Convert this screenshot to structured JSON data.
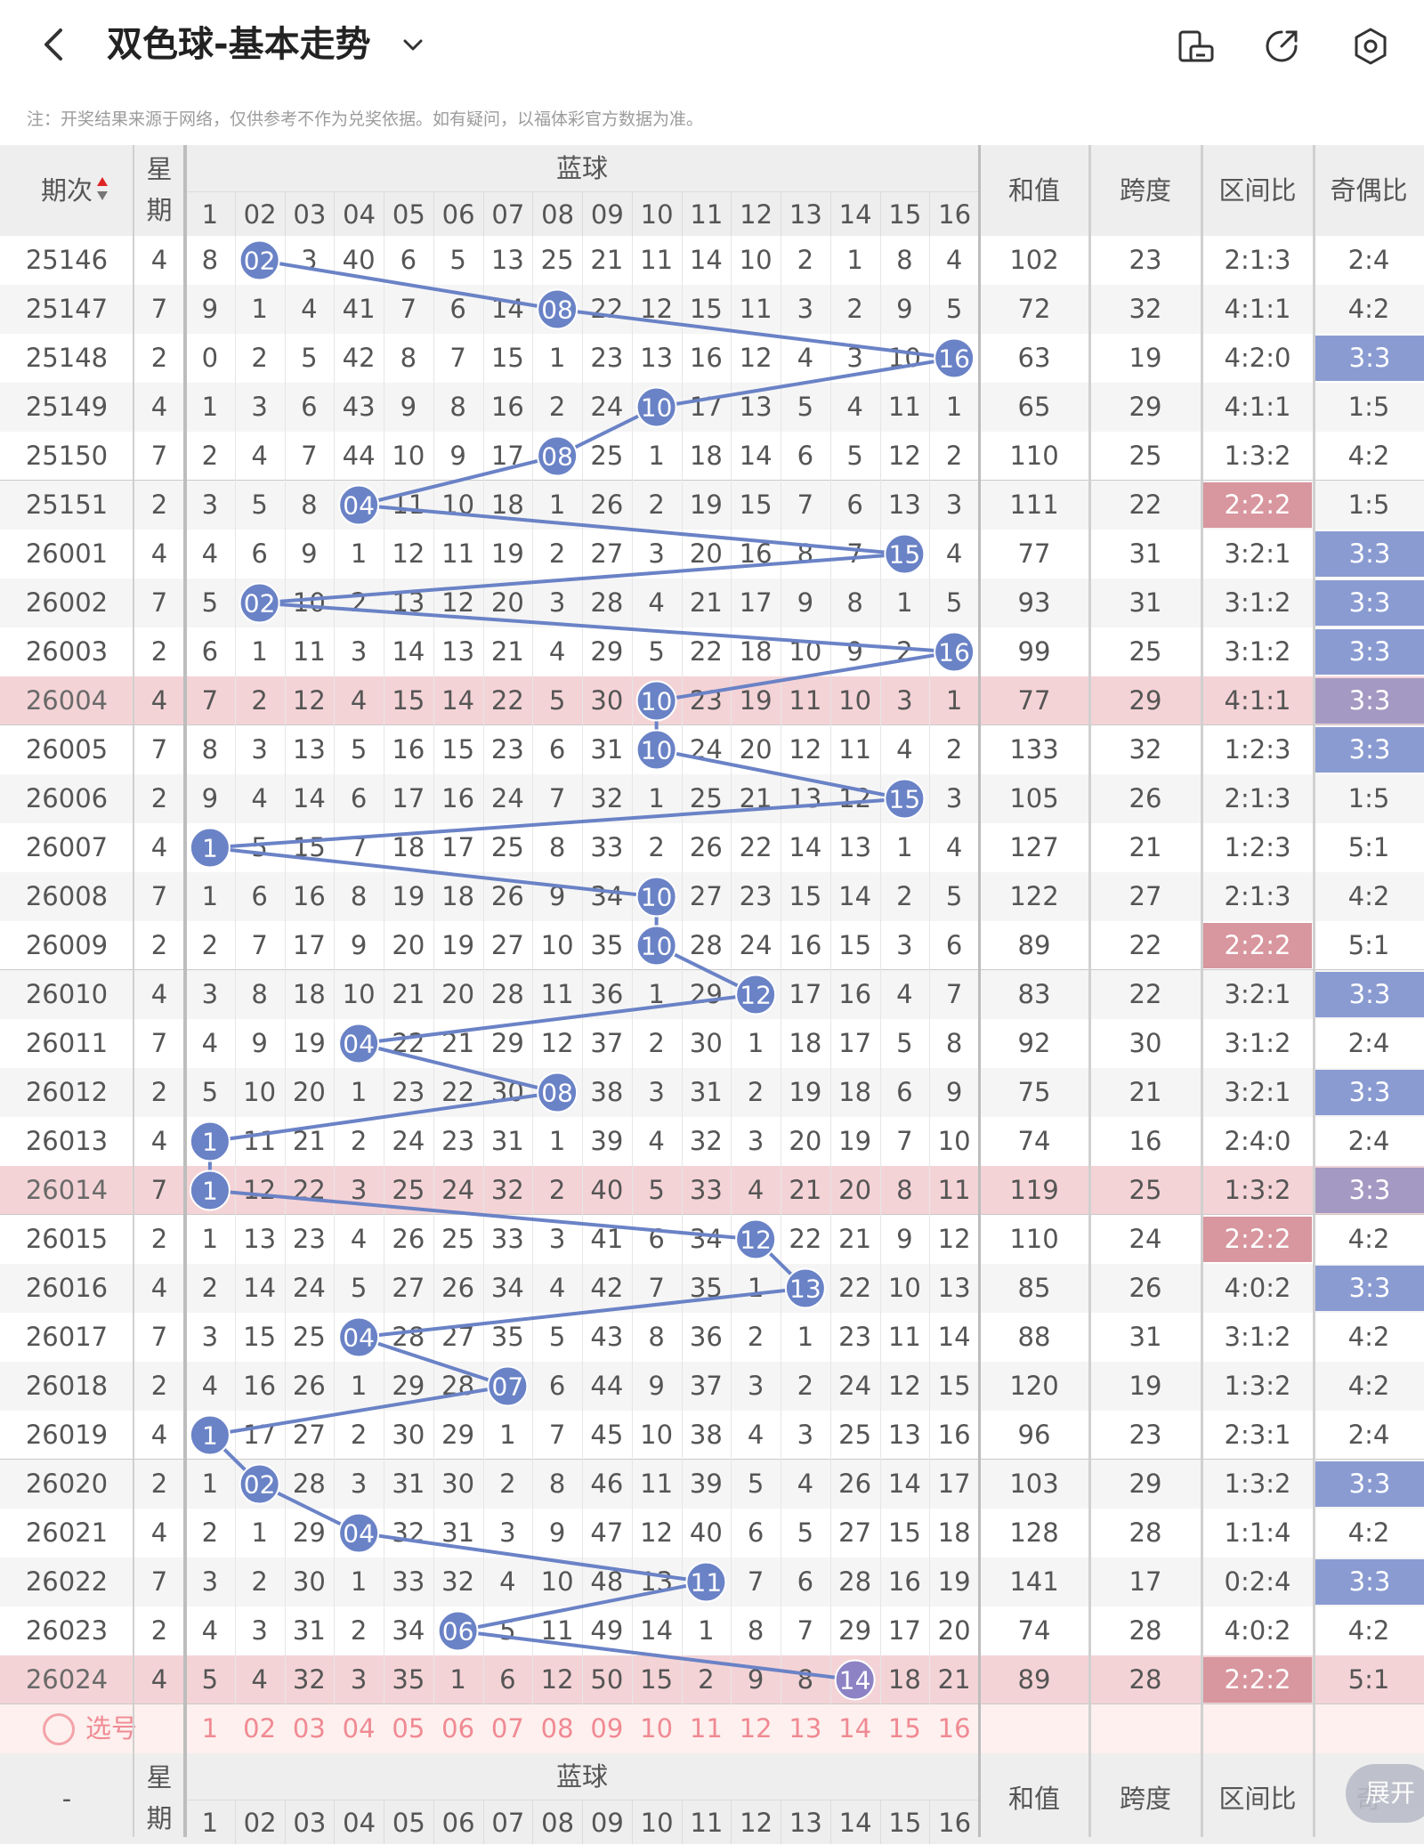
{
  "app": {
    "title": "双色球-基本走势",
    "notice": "注：开奖结果来源于网络，仅供参考不作为兑奖依据。如有疑问，以福体彩官方数据为准。",
    "icons": [
      "back-icon",
      "dropdown-chevron-icon",
      "rotate-screen-icon",
      "share-icon",
      "settings-icon"
    ]
  },
  "header": {
    "period": "期次",
    "week": "星期",
    "blue": "蓝球",
    "sum": "和值",
    "span": "跨度",
    "zone": "区间比",
    "parity": "奇偶比",
    "ball_cols": [
      "1",
      "02",
      "03",
      "04",
      "05",
      "06",
      "07",
      "08",
      "09",
      "10",
      "11",
      "12",
      "13",
      "14",
      "15",
      "16"
    ]
  },
  "rows": [
    {
      "period": "25146",
      "week": "4",
      "cells": [
        "8",
        "02",
        "3",
        "40",
        "6",
        "5",
        "13",
        "25",
        "21",
        "11",
        "14",
        "10",
        "2",
        "1",
        "8",
        "4"
      ],
      "hit": 2,
      "sum": "102",
      "span": "23",
      "zone": "2:1:3",
      "parity": "2:4",
      "hl": false,
      "zone_hl": "",
      "parity_hl": ""
    },
    {
      "period": "25147",
      "week": "7",
      "cells": [
        "9",
        "1",
        "4",
        "41",
        "7",
        "6",
        "14",
        "08",
        "22",
        "12",
        "15",
        "11",
        "3",
        "2",
        "9",
        "5"
      ],
      "hit": 8,
      "sum": "72",
      "span": "32",
      "zone": "4:1:1",
      "parity": "4:2",
      "hl": false,
      "zone_hl": "",
      "parity_hl": ""
    },
    {
      "period": "25148",
      "week": "2",
      "cells": [
        "0",
        "2",
        "5",
        "42",
        "8",
        "7",
        "15",
        "1",
        "23",
        "13",
        "16",
        "12",
        "4",
        "3",
        "10",
        "16"
      ],
      "hit": 16,
      "sum": "63",
      "span": "19",
      "zone": "4:2:0",
      "parity": "3:3",
      "hl": false,
      "zone_hl": "",
      "parity_hl": "blue"
    },
    {
      "period": "25149",
      "week": "4",
      "cells": [
        "1",
        "3",
        "6",
        "43",
        "9",
        "8",
        "16",
        "2",
        "24",
        "10",
        "17",
        "13",
        "5",
        "4",
        "11",
        "1"
      ],
      "hit": 10,
      "sum": "65",
      "span": "29",
      "zone": "4:1:1",
      "parity": "1:5",
      "hl": false,
      "zone_hl": "",
      "parity_hl": ""
    },
    {
      "period": "25150",
      "week": "7",
      "cells": [
        "2",
        "4",
        "7",
        "44",
        "10",
        "9",
        "17",
        "08",
        "25",
        "1",
        "18",
        "14",
        "6",
        "5",
        "12",
        "2"
      ],
      "hit": 8,
      "sum": "110",
      "span": "25",
      "zone": "1:3:2",
      "parity": "4:2",
      "hl": false,
      "zone_hl": "",
      "parity_hl": ""
    },
    {
      "period": "25151",
      "week": "2",
      "cells": [
        "3",
        "5",
        "8",
        "04",
        "11",
        "10",
        "18",
        "1",
        "26",
        "2",
        "19",
        "15",
        "7",
        "6",
        "13",
        "3"
      ],
      "hit": 4,
      "sum": "111",
      "span": "22",
      "zone": "2:2:2",
      "parity": "1:5",
      "hl": false,
      "zone_hl": "red",
      "parity_hl": ""
    },
    {
      "period": "26001",
      "week": "4",
      "cells": [
        "4",
        "6",
        "9",
        "1",
        "12",
        "11",
        "19",
        "2",
        "27",
        "3",
        "20",
        "16",
        "8",
        "7",
        "15",
        "4"
      ],
      "hit": 15,
      "sum": "77",
      "span": "31",
      "zone": "3:2:1",
      "parity": "3:3",
      "hl": false,
      "zone_hl": "",
      "parity_hl": "blue"
    },
    {
      "period": "26002",
      "week": "7",
      "cells": [
        "5",
        "02",
        "10",
        "2",
        "13",
        "12",
        "20",
        "3",
        "28",
        "4",
        "21",
        "17",
        "9",
        "8",
        "1",
        "5"
      ],
      "hit": 2,
      "sum": "93",
      "span": "31",
      "zone": "3:1:2",
      "parity": "3:3",
      "hl": false,
      "zone_hl": "",
      "parity_hl": "blue"
    },
    {
      "period": "26003",
      "week": "2",
      "cells": [
        "6",
        "1",
        "11",
        "3",
        "14",
        "13",
        "21",
        "4",
        "29",
        "5",
        "22",
        "18",
        "10",
        "9",
        "2",
        "16"
      ],
      "hit": 16,
      "sum": "99",
      "span": "25",
      "zone": "3:1:2",
      "parity": "3:3",
      "hl": false,
      "zone_hl": "",
      "parity_hl": "blue"
    },
    {
      "period": "26004",
      "week": "4",
      "cells": [
        "7",
        "2",
        "12",
        "4",
        "15",
        "14",
        "22",
        "5",
        "30",
        "10",
        "23",
        "19",
        "11",
        "10",
        "3",
        "1"
      ],
      "hit": 10,
      "sum": "77",
      "span": "29",
      "zone": "4:1:1",
      "parity": "3:3",
      "hl": true,
      "zone_hl": "",
      "parity_hl": "purple"
    },
    {
      "period": "26005",
      "week": "7",
      "cells": [
        "8",
        "3",
        "13",
        "5",
        "16",
        "15",
        "23",
        "6",
        "31",
        "10",
        "24",
        "20",
        "12",
        "11",
        "4",
        "2"
      ],
      "hit": 10,
      "sum": "133",
      "span": "32",
      "zone": "1:2:3",
      "parity": "3:3",
      "hl": false,
      "zone_hl": "",
      "parity_hl": "blue"
    },
    {
      "period": "26006",
      "week": "2",
      "cells": [
        "9",
        "4",
        "14",
        "6",
        "17",
        "16",
        "24",
        "7",
        "32",
        "1",
        "25",
        "21",
        "13",
        "12",
        "15",
        "3"
      ],
      "hit": 15,
      "sum": "105",
      "span": "26",
      "zone": "2:1:3",
      "parity": "1:5",
      "hl": false,
      "zone_hl": "",
      "parity_hl": ""
    },
    {
      "period": "26007",
      "week": "4",
      "cells": [
        "1",
        "5",
        "15",
        "7",
        "18",
        "17",
        "25",
        "8",
        "33",
        "2",
        "26",
        "22",
        "14",
        "13",
        "1",
        "4"
      ],
      "hit": 1,
      "sum": "127",
      "span": "21",
      "zone": "1:2:3",
      "parity": "5:1",
      "hl": false,
      "zone_hl": "",
      "parity_hl": ""
    },
    {
      "period": "26008",
      "week": "7",
      "cells": [
        "1",
        "6",
        "16",
        "8",
        "19",
        "18",
        "26",
        "9",
        "34",
        "10",
        "27",
        "23",
        "15",
        "14",
        "2",
        "5"
      ],
      "hit": 10,
      "sum": "122",
      "span": "27",
      "zone": "2:1:3",
      "parity": "4:2",
      "hl": false,
      "zone_hl": "",
      "parity_hl": ""
    },
    {
      "period": "26009",
      "week": "2",
      "cells": [
        "2",
        "7",
        "17",
        "9",
        "20",
        "19",
        "27",
        "10",
        "35",
        "10",
        "28",
        "24",
        "16",
        "15",
        "3",
        "6"
      ],
      "hit": 10,
      "sum": "89",
      "span": "22",
      "zone": "2:2:2",
      "parity": "5:1",
      "hl": false,
      "zone_hl": "red",
      "parity_hl": ""
    },
    {
      "period": "26010",
      "week": "4",
      "cells": [
        "3",
        "8",
        "18",
        "10",
        "21",
        "20",
        "28",
        "11",
        "36",
        "1",
        "29",
        "12",
        "17",
        "16",
        "4",
        "7"
      ],
      "hit": 12,
      "sum": "83",
      "span": "22",
      "zone": "3:2:1",
      "parity": "3:3",
      "hl": false,
      "zone_hl": "",
      "parity_hl": "blue"
    },
    {
      "period": "26011",
      "week": "7",
      "cells": [
        "4",
        "9",
        "19",
        "04",
        "22",
        "21",
        "29",
        "12",
        "37",
        "2",
        "30",
        "1",
        "18",
        "17",
        "5",
        "8"
      ],
      "hit": 4,
      "sum": "92",
      "span": "30",
      "zone": "3:1:2",
      "parity": "2:4",
      "hl": false,
      "zone_hl": "",
      "parity_hl": ""
    },
    {
      "period": "26012",
      "week": "2",
      "cells": [
        "5",
        "10",
        "20",
        "1",
        "23",
        "22",
        "30",
        "08",
        "38",
        "3",
        "31",
        "2",
        "19",
        "18",
        "6",
        "9"
      ],
      "hit": 8,
      "sum": "75",
      "span": "21",
      "zone": "3:2:1",
      "parity": "3:3",
      "hl": false,
      "zone_hl": "",
      "parity_hl": "blue"
    },
    {
      "period": "26013",
      "week": "4",
      "cells": [
        "1",
        "11",
        "21",
        "2",
        "24",
        "23",
        "31",
        "1",
        "39",
        "4",
        "32",
        "3",
        "20",
        "19",
        "7",
        "10"
      ],
      "hit": 1,
      "sum": "74",
      "span": "16",
      "zone": "2:4:0",
      "parity": "2:4",
      "hl": false,
      "zone_hl": "",
      "parity_hl": ""
    },
    {
      "period": "26014",
      "week": "7",
      "cells": [
        "1",
        "12",
        "22",
        "3",
        "25",
        "24",
        "32",
        "2",
        "40",
        "5",
        "33",
        "4",
        "21",
        "20",
        "8",
        "11"
      ],
      "hit": 1,
      "sum": "119",
      "span": "25",
      "zone": "1:3:2",
      "parity": "3:3",
      "hl": true,
      "zone_hl": "",
      "parity_hl": "purple"
    },
    {
      "period": "26015",
      "week": "2",
      "cells": [
        "1",
        "13",
        "23",
        "4",
        "26",
        "25",
        "33",
        "3",
        "41",
        "6",
        "34",
        "12",
        "22",
        "21",
        "9",
        "12"
      ],
      "hit": 12,
      "sum": "110",
      "span": "24",
      "zone": "2:2:2",
      "parity": "4:2",
      "hl": false,
      "zone_hl": "red",
      "parity_hl": ""
    },
    {
      "period": "26016",
      "week": "4",
      "cells": [
        "2",
        "14",
        "24",
        "5",
        "27",
        "26",
        "34",
        "4",
        "42",
        "7",
        "35",
        "1",
        "13",
        "22",
        "10",
        "13"
      ],
      "hit": 13,
      "sum": "85",
      "span": "26",
      "zone": "4:0:2",
      "parity": "3:3",
      "hl": false,
      "zone_hl": "",
      "parity_hl": "blue"
    },
    {
      "period": "26017",
      "week": "7",
      "cells": [
        "3",
        "15",
        "25",
        "04",
        "28",
        "27",
        "35",
        "5",
        "43",
        "8",
        "36",
        "2",
        "1",
        "23",
        "11",
        "14"
      ],
      "hit": 4,
      "sum": "88",
      "span": "31",
      "zone": "3:1:2",
      "parity": "4:2",
      "hl": false,
      "zone_hl": "",
      "parity_hl": ""
    },
    {
      "period": "26018",
      "week": "2",
      "cells": [
        "4",
        "16",
        "26",
        "1",
        "29",
        "28",
        "07",
        "6",
        "44",
        "9",
        "37",
        "3",
        "2",
        "24",
        "12",
        "15"
      ],
      "hit": 7,
      "sum": "120",
      "span": "19",
      "zone": "1:3:2",
      "parity": "4:2",
      "hl": false,
      "zone_hl": "",
      "parity_hl": ""
    },
    {
      "period": "26019",
      "week": "4",
      "cells": [
        "1",
        "17",
        "27",
        "2",
        "30",
        "29",
        "1",
        "7",
        "45",
        "10",
        "38",
        "4",
        "3",
        "25",
        "13",
        "16"
      ],
      "hit": 1,
      "sum": "96",
      "span": "23",
      "zone": "2:3:1",
      "parity": "2:4",
      "hl": false,
      "zone_hl": "",
      "parity_hl": ""
    },
    {
      "period": "26020",
      "week": "2",
      "cells": [
        "1",
        "02",
        "28",
        "3",
        "31",
        "30",
        "2",
        "8",
        "46",
        "11",
        "39",
        "5",
        "4",
        "26",
        "14",
        "17"
      ],
      "hit": 2,
      "sum": "103",
      "span": "29",
      "zone": "1:3:2",
      "parity": "3:3",
      "hl": false,
      "zone_hl": "",
      "parity_hl": "blue"
    },
    {
      "period": "26021",
      "week": "4",
      "cells": [
        "2",
        "1",
        "29",
        "04",
        "32",
        "31",
        "3",
        "9",
        "47",
        "12",
        "40",
        "6",
        "5",
        "27",
        "15",
        "18"
      ],
      "hit": 4,
      "sum": "128",
      "span": "28",
      "zone": "1:1:4",
      "parity": "4:2",
      "hl": false,
      "zone_hl": "",
      "parity_hl": ""
    },
    {
      "period": "26022",
      "week": "7",
      "cells": [
        "3",
        "2",
        "30",
        "1",
        "33",
        "32",
        "4",
        "10",
        "48",
        "13",
        "11",
        "7",
        "6",
        "28",
        "16",
        "19"
      ],
      "hit": 11,
      "sum": "141",
      "span": "17",
      "zone": "0:2:4",
      "parity": "3:3",
      "hl": false,
      "zone_hl": "",
      "parity_hl": "blue"
    },
    {
      "period": "26023",
      "week": "2",
      "cells": [
        "4",
        "3",
        "31",
        "2",
        "34",
        "06",
        "5",
        "11",
        "49",
        "14",
        "1",
        "8",
        "7",
        "29",
        "17",
        "20"
      ],
      "hit": 6,
      "sum": "74",
      "span": "28",
      "zone": "4:0:2",
      "parity": "4:2",
      "hl": false,
      "zone_hl": "",
      "parity_hl": ""
    },
    {
      "period": "26024",
      "week": "4",
      "cells": [
        "5",
        "4",
        "32",
        "3",
        "35",
        "1",
        "6",
        "12",
        "50",
        "15",
        "2",
        "9",
        "8",
        "14",
        "18",
        "21"
      ],
      "hit": 14,
      "sum": "89",
      "span": "28",
      "zone": "2:2:2",
      "parity": "5:1",
      "hl": true,
      "zone_hl": "red",
      "parity_hl": ""
    }
  ],
  "select_row": {
    "label": "选号",
    "balls": [
      "1",
      "02",
      "03",
      "04",
      "05",
      "06",
      "07",
      "08",
      "09",
      "10",
      "11",
      "12",
      "13",
      "14",
      "15",
      "16"
    ]
  },
  "footer": {
    "period": "-",
    "week": "星期",
    "blue": "蓝球",
    "sum": "和值",
    "span": "跨度",
    "zone": "区间比",
    "parity": "奇",
    "expand": "展开"
  },
  "colors": {
    "ball": "#6a82c6",
    "line": "#6a82c6",
    "row_highlight": "#f4d3d6",
    "select_bg": "#fdf0ee",
    "select_text": "#f08a93",
    "parity_blue": "#8a9bd2",
    "zone_red": "#d8969e",
    "parity_purple": "#a499c2"
  }
}
